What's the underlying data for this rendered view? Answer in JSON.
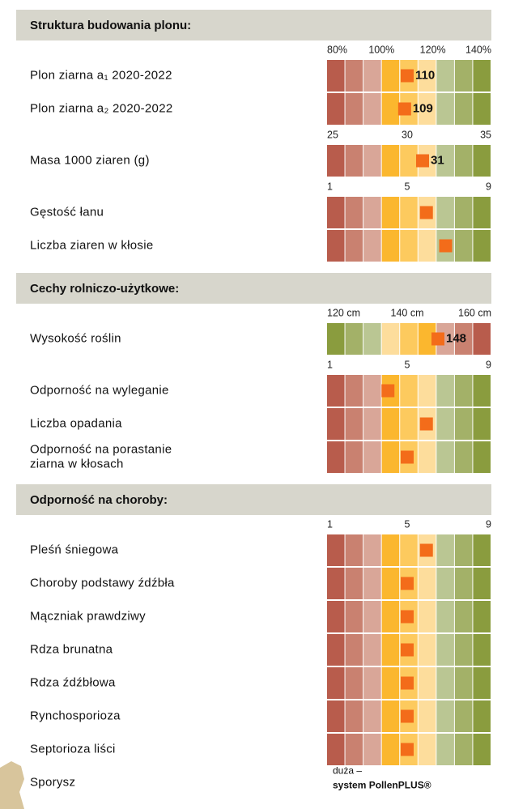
{
  "palette": [
    "#b85c4c",
    "#c98170",
    "#d9a698",
    "#fbb72e",
    "#fdca5e",
    "#fddd9c",
    "#bac693",
    "#a3b168",
    "#8a9c3e"
  ],
  "sections": [
    {
      "title": "Struktura budowania plonu:",
      "groups": [
        {
          "lim": [
            80,
            140
          ],
          "ticks": [
            {
              "value": 80,
              "label": "80%"
            },
            {
              "value": 100,
              "label": "100%"
            },
            {
              "value": 120,
              "label": "120%"
            },
            {
              "value": 140,
              "label": "140%"
            }
          ],
          "rows": [
            {
              "label": "Plon ziarna a₁ 2020-2022",
              "value": 110,
              "labeled": true
            },
            {
              "label": "Plon ziarna a₂ 2020-2022",
              "value": 109,
              "labeled": true
            }
          ]
        },
        {
          "lim": [
            25,
            35
          ],
          "ticks": [
            25,
            30,
            35
          ],
          "rows": [
            {
              "label": "Masa 1000 ziaren (g)",
              "value": 31,
              "labeled": true
            }
          ]
        },
        {
          "lim": [
            1,
            9
          ],
          "ticks": [
            1,
            5,
            9
          ],
          "rows": [
            {
              "label": "Gęstość łanu",
              "value": 6
            },
            {
              "label": "Liczba ziaren w kłosie",
              "value": 7
            }
          ]
        }
      ]
    },
    {
      "title": "Cechy rolniczo-użytkowe:",
      "groups": [
        {
          "lim": [
            120,
            160
          ],
          "reverse": true,
          "ticks": [
            {
              "value": 120,
              "label": "120 cm"
            },
            {
              "value": 140,
              "label": "140 cm"
            },
            {
              "value": 160,
              "label": "160 cm"
            }
          ],
          "rows": [
            {
              "label": "Wysokość roślin",
              "value": 148,
              "labeled": true
            }
          ]
        },
        {
          "lim": [
            1,
            9
          ],
          "ticks": [
            1,
            5,
            9
          ],
          "rows": [
            {
              "label": "Odporność na wyleganie",
              "value": 4
            },
            {
              "label": "Liczba opadania",
              "value": 6
            },
            {
              "label": [
                "Odporność na porastanie",
                "ziarna w kłosach"
              ],
              "value": 5
            }
          ]
        }
      ]
    },
    {
      "title": "Odporność na choroby:",
      "groups": [
        {
          "lim": [
            1,
            9
          ],
          "ticks": [
            1,
            5,
            9
          ],
          "rows": [
            {
              "label": "Pleśń śniegowa",
              "value": 6
            },
            {
              "label": "Choroby podstawy źdźbła",
              "value": 5
            },
            {
              "label": "Mączniak prawdziwy",
              "value": 5
            },
            {
              "label": "Rdza brunatna",
              "value": 5
            },
            {
              "label": "Rdza źdźbłowa",
              "value": 5
            },
            {
              "label": "Rynchosporioza",
              "value": 5
            },
            {
              "label": "Septorioza liści",
              "value": 5
            },
            {
              "label": "Sporysz",
              "note": [
                "duża –",
                "system PollenPLUS®"
              ]
            }
          ]
        }
      ]
    }
  ]
}
